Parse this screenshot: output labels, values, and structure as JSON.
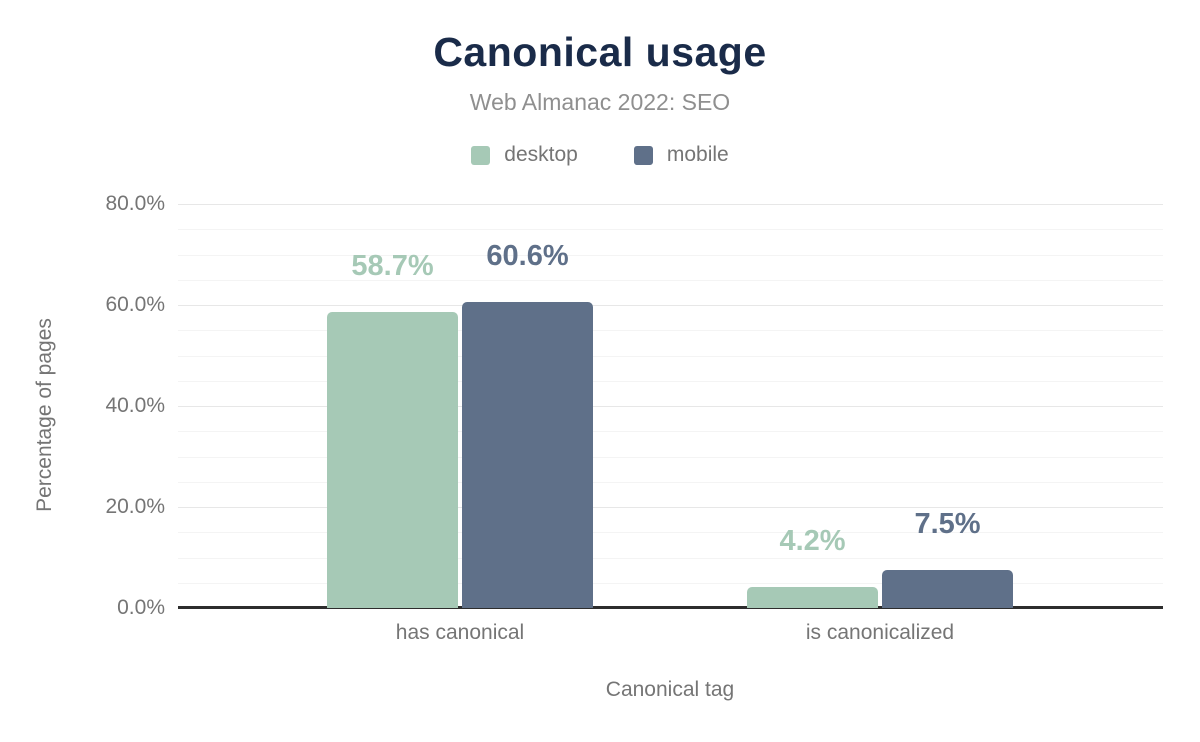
{
  "chart_data": {
    "type": "bar",
    "title": "Canonical usage",
    "subtitle": "Web Almanac 2022: SEO",
    "categories": [
      "has canonical",
      "is canonicalized"
    ],
    "series": [
      {
        "name": "desktop",
        "color": "#a6c9b6",
        "values": [
          58.7,
          4.2
        ],
        "labels": [
          "58.7%",
          "4.2%"
        ]
      },
      {
        "name": "mobile",
        "color": "#5f7089",
        "values": [
          60.6,
          7.5
        ],
        "labels": [
          "60.6%",
          "7.5%"
        ]
      }
    ],
    "xlabel": "Canonical tag",
    "ylabel": "Percentage of pages",
    "ylim": [
      0,
      80
    ],
    "yticks": {
      "values": [
        0,
        20,
        40,
        60,
        80
      ],
      "labels": [
        "0.0%",
        "20.0%",
        "40.0%",
        "60.0%",
        "80.0%"
      ]
    },
    "minor_tick_step": 5,
    "grid": true,
    "legend_position": "top"
  },
  "colors": {
    "background": "#ffffff",
    "title": "#1a2b49",
    "subtitle": "#8f8f8f",
    "muted_text": "#757575",
    "grid_major": "#e7e7e7",
    "grid_minor": "#f4f4f4",
    "axis_line": "#2d2d2d"
  }
}
